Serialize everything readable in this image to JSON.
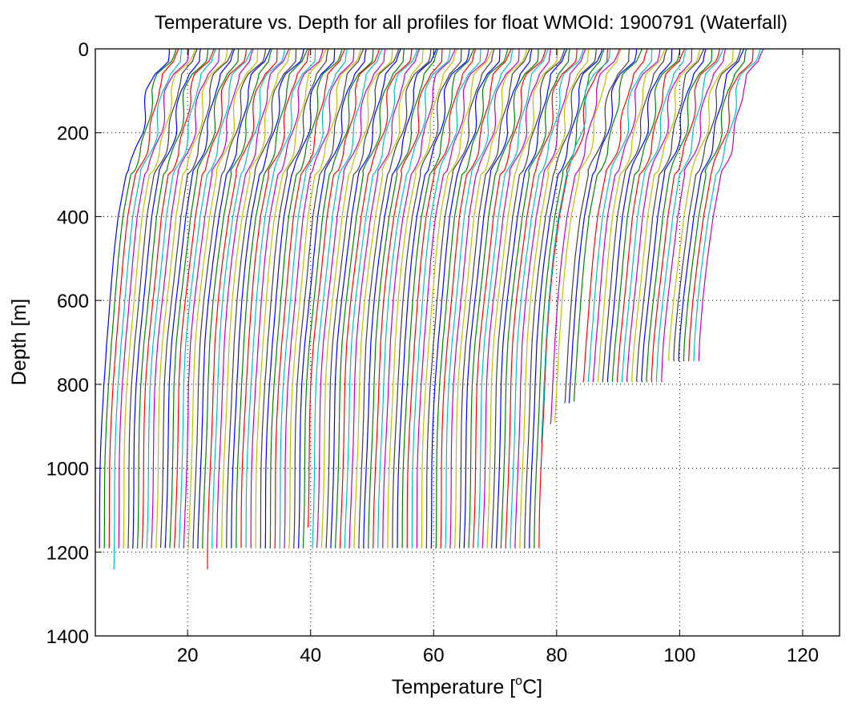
{
  "chart_data": {
    "type": "line",
    "title": "Temperature vs. Depth for all profiles for float WMOId: 1900791 (Waterfall)",
    "xlabel": "Temperature [",
    "xlabel_sup": "o",
    "xlabel_tail": "C]",
    "ylabel": "Depth [m]",
    "xlim": [
      5,
      126
    ],
    "ylim": [
      0,
      1400
    ],
    "y_reversed": true,
    "x_ticks": [
      20,
      40,
      60,
      80,
      100,
      120
    ],
    "y_ticks": [
      0,
      200,
      400,
      600,
      800,
      1000,
      1200,
      1400
    ],
    "grid": true,
    "grid_style": "dotted",
    "legend": "none",
    "color_cycle": [
      "#0000ff",
      "#008000",
      "#ff0000",
      "#00bfbf",
      "#bf00bf",
      "#bfbf00",
      "#404040"
    ],
    "waterfall": {
      "profile_count": 94,
      "first_deep_temperature": 5.6,
      "offset_per_profile": 0.77,
      "max_depths": [
        1190,
        1190,
        1190,
        1240,
        1190,
        1190,
        1190,
        1190,
        1190,
        1190,
        1190,
        1190,
        1190,
        1190,
        1190,
        1190,
        1190,
        1190,
        1190,
        1190,
        1190,
        1190,
        1190,
        1240,
        1190,
        1190,
        1190,
        1190,
        1190,
        1190,
        1190,
        1190,
        1190,
        1190,
        1190,
        1190,
        1190,
        1190,
        1190,
        1190,
        1190,
        1190,
        1190,
        1190,
        1140,
        1190,
        1190,
        1190,
        1190,
        1190,
        1190,
        1190,
        1190,
        1190,
        1190,
        1190,
        1190,
        1190,
        1190,
        1190,
        1190,
        1190,
        1190,
        1190,
        1190,
        1190,
        1190,
        1190,
        1190,
        1190,
        1190,
        1190,
        1190,
        1190,
        1190,
        1190,
        1190,
        1190,
        1190,
        1190,
        1190,
        1190,
        1190,
        1190,
        1190,
        1190,
        1190,
        1190,
        1190,
        1190,
        1190,
        1190,
        1190,
        1190
      ],
      "late_profiles": [
        {
          "deep_temperature": 77.5,
          "max_depth": 940
        },
        {
          "deep_temperature": 79.0,
          "max_depth": 895
        },
        {
          "deep_temperature": 79.7,
          "max_depth": 890
        },
        {
          "deep_temperature": 81.3,
          "max_depth": 845
        },
        {
          "deep_temperature": 82.0,
          "max_depth": 845
        },
        {
          "deep_temperature": 82.8,
          "max_depth": 840
        },
        {
          "deep_temperature": 84.3,
          "max_depth": 795
        },
        {
          "deep_temperature": 85.1,
          "max_depth": 795
        },
        {
          "deep_temperature": 85.9,
          "max_depth": 795
        },
        {
          "deep_temperature": 86.7,
          "max_depth": 795
        },
        {
          "deep_temperature": 87.5,
          "max_depth": 795
        },
        {
          "deep_temperature": 88.3,
          "max_depth": 795
        },
        {
          "deep_temperature": 89.1,
          "max_depth": 795
        },
        {
          "deep_temperature": 89.9,
          "max_depth": 795
        },
        {
          "deep_temperature": 90.7,
          "max_depth": 795
        },
        {
          "deep_temperature": 91.5,
          "max_depth": 795
        },
        {
          "deep_temperature": 92.3,
          "max_depth": 795
        },
        {
          "deep_temperature": 93.1,
          "max_depth": 795
        },
        {
          "deep_temperature": 93.9,
          "max_depth": 795
        },
        {
          "deep_temperature": 94.7,
          "max_depth": 795
        },
        {
          "deep_temperature": 95.5,
          "max_depth": 795
        },
        {
          "deep_temperature": 96.3,
          "max_depth": 795
        },
        {
          "deep_temperature": 97.1,
          "max_depth": 795
        },
        {
          "deep_temperature": 98.3,
          "max_depth": 745
        },
        {
          "deep_temperature": 99.1,
          "max_depth": 745
        },
        {
          "deep_temperature": 99.9,
          "max_depth": 745
        },
        {
          "deep_temperature": 100.7,
          "max_depth": 745
        },
        {
          "deep_temperature": 101.5,
          "max_depth": 745
        },
        {
          "deep_temperature": 102.3,
          "max_depth": 745
        },
        {
          "deep_temperature": 103.1,
          "max_depth": 745
        }
      ],
      "profile_shape": {
        "depth_points": [
          0,
          30,
          60,
          100,
          150,
          200,
          250,
          300,
          400,
          500,
          600,
          700,
          800,
          900,
          1000,
          1100,
          1200,
          1250
        ],
        "temperature_anomaly": [
          11.5,
          11.0,
          9.0,
          8.0,
          7.5,
          7.0,
          6.0,
          4.5,
          3.3,
          2.5,
          1.8,
          1.2,
          0.8,
          0.55,
          0.35,
          0.2,
          0.05,
          0.0
        ]
      }
    }
  }
}
